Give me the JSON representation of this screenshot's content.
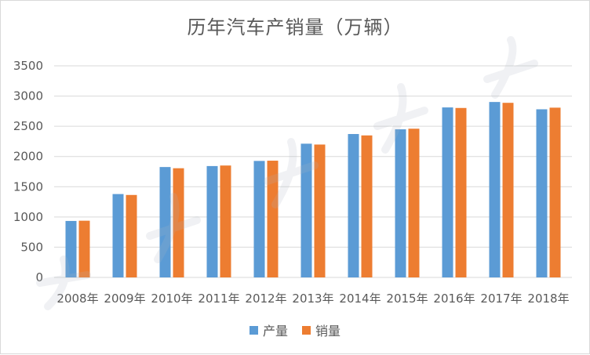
{
  "chart_data": {
    "type": "bar",
    "title": "历年汽车产销量（万辆）",
    "categories": [
      "2008年",
      "2009年",
      "2010年",
      "2011年",
      "2012年",
      "2013年",
      "2014年",
      "2015年",
      "2016年",
      "2017年",
      "2018年"
    ],
    "series": [
      {
        "name": "产量",
        "color": "#5b9bd5",
        "values": [
          934,
          1379,
          1826,
          1842,
          1927,
          2212,
          2372,
          2450,
          2812,
          2902,
          2781
        ]
      },
      {
        "name": "销量",
        "color": "#ed7d31",
        "values": [
          938,
          1364,
          1806,
          1851,
          1931,
          2198,
          2349,
          2460,
          2803,
          2888,
          2808
        ]
      }
    ],
    "ylim": [
      0,
      3500
    ],
    "yticks": [
      0,
      500,
      1000,
      1500,
      2000,
      2500,
      3000,
      3500
    ],
    "grid": true,
    "legend_position": "bottom"
  }
}
